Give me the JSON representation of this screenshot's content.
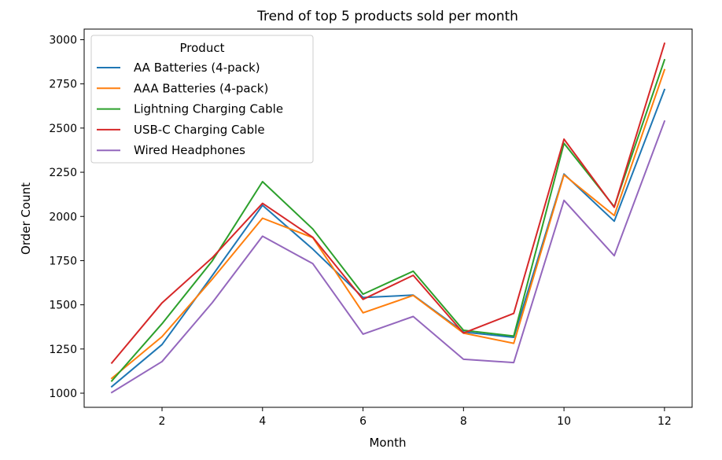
{
  "chart_data": {
    "type": "line",
    "title": "Trend of top 5 products sold per month",
    "xlabel": "Month",
    "ylabel": "Order Count",
    "x": [
      1,
      2,
      3,
      4,
      5,
      6,
      7,
      8,
      9,
      10,
      11,
      12
    ],
    "xticks": [
      2,
      4,
      6,
      8,
      10,
      12
    ],
    "yticks": [
      1000,
      1250,
      1500,
      1750,
      2000,
      2250,
      2500,
      2750,
      3000
    ],
    "xlim": [
      0.45,
      12.55
    ],
    "ylim": [
      920,
      3060
    ],
    "grid": false,
    "legend": {
      "title": "Product",
      "placement": "upper-left"
    },
    "series": [
      {
        "name": "AA Batteries (4-pack)",
        "color": "#1f77b4",
        "values": [
          1037,
          1275,
          1665,
          2063,
          1815,
          1541,
          1555,
          1346,
          1316,
          2240,
          1973,
          2718
        ]
      },
      {
        "name": "AAA Batteries (4-pack)",
        "color": "#ff7f0e",
        "values": [
          1084,
          1320,
          1645,
          1990,
          1880,
          1455,
          1553,
          1340,
          1282,
          2235,
          2005,
          2830
        ]
      },
      {
        "name": "Lightning Charging Cable",
        "color": "#2ca02c",
        "values": [
          1069,
          1393,
          1749,
          2197,
          1929,
          1560,
          1690,
          1356,
          1323,
          2414,
          2055,
          2886
        ]
      },
      {
        "name": "USB-C Charging Cable",
        "color": "#d62728",
        "values": [
          1171,
          1511,
          1766,
          2074,
          1882,
          1531,
          1667,
          1340,
          1451,
          2437,
          2052,
          2979
        ]
      },
      {
        "name": "Wired Headphones",
        "color": "#9467bd",
        "values": [
          1004,
          1179,
          1512,
          1888,
          1733,
          1334,
          1434,
          1192,
          1173,
          2091,
          1778,
          2539
        ]
      }
    ]
  }
}
